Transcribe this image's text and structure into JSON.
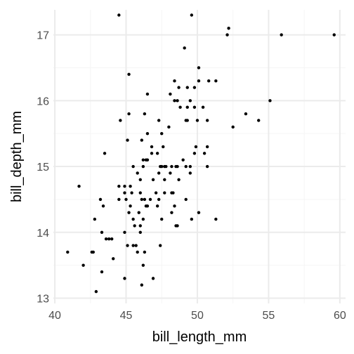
{
  "chart_data": {
    "type": "scatter",
    "title": "",
    "xlabel": "bill_length_mm",
    "ylabel": "bill_depth_mm",
    "xlim": [
      39.9,
      60.4
    ],
    "ylim": [
      12.92,
      17.38
    ],
    "x_ticks": [
      40,
      45,
      50,
      55,
      60
    ],
    "y_ticks": [
      13,
      14,
      15,
      16,
      17
    ],
    "x_minor_ticks": [
      42.5,
      47.5,
      52.5,
      57.5
    ],
    "y_minor_ticks": [
      13.5,
      14.5,
      15.5,
      16.5
    ],
    "grid": true,
    "point_color": "#000000",
    "background": "#ffffff",
    "grid_major_color": "#ebebeb",
    "grid_minor_color": "#f5f5f5",
    "points": [
      [
        44.5,
        17.3
      ],
      [
        49.6,
        17.3
      ],
      [
        52.2,
        17.1
      ],
      [
        52.1,
        17.0
      ],
      [
        55.9,
        17.0
      ],
      [
        59.6,
        17.0
      ],
      [
        49.1,
        16.8
      ],
      [
        45.2,
        16.4
      ],
      [
        50.1,
        16.5
      ],
      [
        50.1,
        16.3
      ],
      [
        50.8,
        16.3
      ],
      [
        51.3,
        16.3
      ],
      [
        48.4,
        16.3
      ],
      [
        48.7,
        16.2
      ],
      [
        49.3,
        16.2
      ],
      [
        46.5,
        16.1
      ],
      [
        48.1,
        16.1
      ],
      [
        49.8,
        16.2
      ],
      [
        48.6,
        16.0
      ],
      [
        49.5,
        16.0
      ],
      [
        48.4,
        16.0
      ],
      [
        55.1,
        16.0
      ],
      [
        49.3,
        15.9
      ],
      [
        49.8,
        15.9
      ],
      [
        48.8,
        15.9
      ],
      [
        50.4,
        15.9
      ],
      [
        45.2,
        15.8
      ],
      [
        46.3,
        15.8
      ],
      [
        53.4,
        15.8
      ],
      [
        49.3,
        15.7
      ],
      [
        44.6,
        15.7
      ],
      [
        47.3,
        15.7
      ],
      [
        49.2,
        15.7
      ],
      [
        50.0,
        15.7
      ],
      [
        50.7,
        15.7
      ],
      [
        54.3,
        15.7
      ],
      [
        48.0,
        15.6
      ],
      [
        52.5,
        15.6
      ],
      [
        46.5,
        15.5
      ],
      [
        47.5,
        15.5
      ],
      [
        46.1,
        15.4
      ],
      [
        45.1,
        15.4
      ],
      [
        46.8,
        15.2
      ],
      [
        46.8,
        15.3
      ],
      [
        47.6,
        15.3
      ],
      [
        49.9,
        15.3
      ],
      [
        50.7,
        15.3
      ],
      [
        43.5,
        15.2
      ],
      [
        46.4,
        15.1
      ],
      [
        47.2,
        15.2
      ],
      [
        46.2,
        15.1
      ],
      [
        49.8,
        15.2
      ],
      [
        50.5,
        15.2
      ],
      [
        49.5,
        15.0
      ],
      [
        46.5,
        15.1
      ],
      [
        47.5,
        15.0
      ],
      [
        47.7,
        15.0
      ],
      [
        47.4,
        15.0
      ],
      [
        48.5,
        15.0
      ],
      [
        48.6,
        15.0
      ],
      [
        48.2,
        15.0
      ],
      [
        50.7,
        15.0
      ],
      [
        49.2,
        15.0
      ],
      [
        45.5,
        15.0
      ],
      [
        46.2,
        15.0
      ],
      [
        47.8,
        15.0
      ],
      [
        49.0,
        15.1
      ],
      [
        44.9,
        14.7
      ],
      [
        46.9,
        14.8
      ],
      [
        47.7,
        14.8
      ],
      [
        47.3,
        14.9
      ],
      [
        45.8,
        14.9
      ],
      [
        49.5,
        14.9
      ],
      [
        48.1,
        14.9
      ],
      [
        46.0,
        14.8
      ],
      [
        48.7,
        14.8
      ],
      [
        45.3,
        14.7
      ],
      [
        41.7,
        14.7
      ],
      [
        44.5,
        14.7
      ],
      [
        44.9,
        14.6
      ],
      [
        48.2,
        14.6
      ],
      [
        46.0,
        14.6
      ],
      [
        47.7,
        14.6
      ],
      [
        47.1,
        14.6
      ],
      [
        45.4,
        14.6
      ],
      [
        48.3,
        14.6
      ],
      [
        43.2,
        14.5
      ],
      [
        45.0,
        14.5
      ],
      [
        46.1,
        14.5
      ],
      [
        46.3,
        14.5
      ],
      [
        47.3,
        14.5
      ],
      [
        46.7,
        14.5
      ],
      [
        49.2,
        14.5
      ],
      [
        44.5,
        14.5
      ],
      [
        43.4,
        14.4
      ],
      [
        45.3,
        14.4
      ],
      [
        46.5,
        14.4
      ],
      [
        47.2,
        14.4
      ],
      [
        46.4,
        14.4
      ],
      [
        48.4,
        14.4
      ],
      [
        45.2,
        14.3
      ],
      [
        45.9,
        14.3
      ],
      [
        48.2,
        14.3
      ],
      [
        50.1,
        14.3
      ],
      [
        47.5,
        14.2
      ],
      [
        45.5,
        14.2
      ],
      [
        49.6,
        14.2
      ],
      [
        51.3,
        14.2
      ],
      [
        42.8,
        14.2
      ],
      [
        46.2,
        14.2
      ],
      [
        43.3,
        14.0
      ],
      [
        46.0,
        14.1
      ],
      [
        48.6,
        14.1
      ],
      [
        48.5,
        14.1
      ],
      [
        44.9,
        14.0
      ],
      [
        45.6,
        14.1
      ],
      [
        46.0,
        14.0
      ],
      [
        43.6,
        13.9
      ],
      [
        43.8,
        13.9
      ],
      [
        44.0,
        13.9
      ],
      [
        45.1,
        13.8
      ],
      [
        45.5,
        13.8
      ],
      [
        45.7,
        13.8
      ],
      [
        47.4,
        13.8
      ],
      [
        46.3,
        13.7
      ],
      [
        45.8,
        13.7
      ],
      [
        42.7,
        13.7
      ],
      [
        42.6,
        13.7
      ],
      [
        40.9,
        13.7
      ],
      [
        44.1,
        13.6
      ],
      [
        46.2,
        13.5
      ],
      [
        42.0,
        13.5
      ],
      [
        43.3,
        13.4
      ],
      [
        44.9,
        13.3
      ],
      [
        46.9,
        13.3
      ],
      [
        46.1,
        13.2
      ],
      [
        42.9,
        13.1
      ]
    ]
  }
}
